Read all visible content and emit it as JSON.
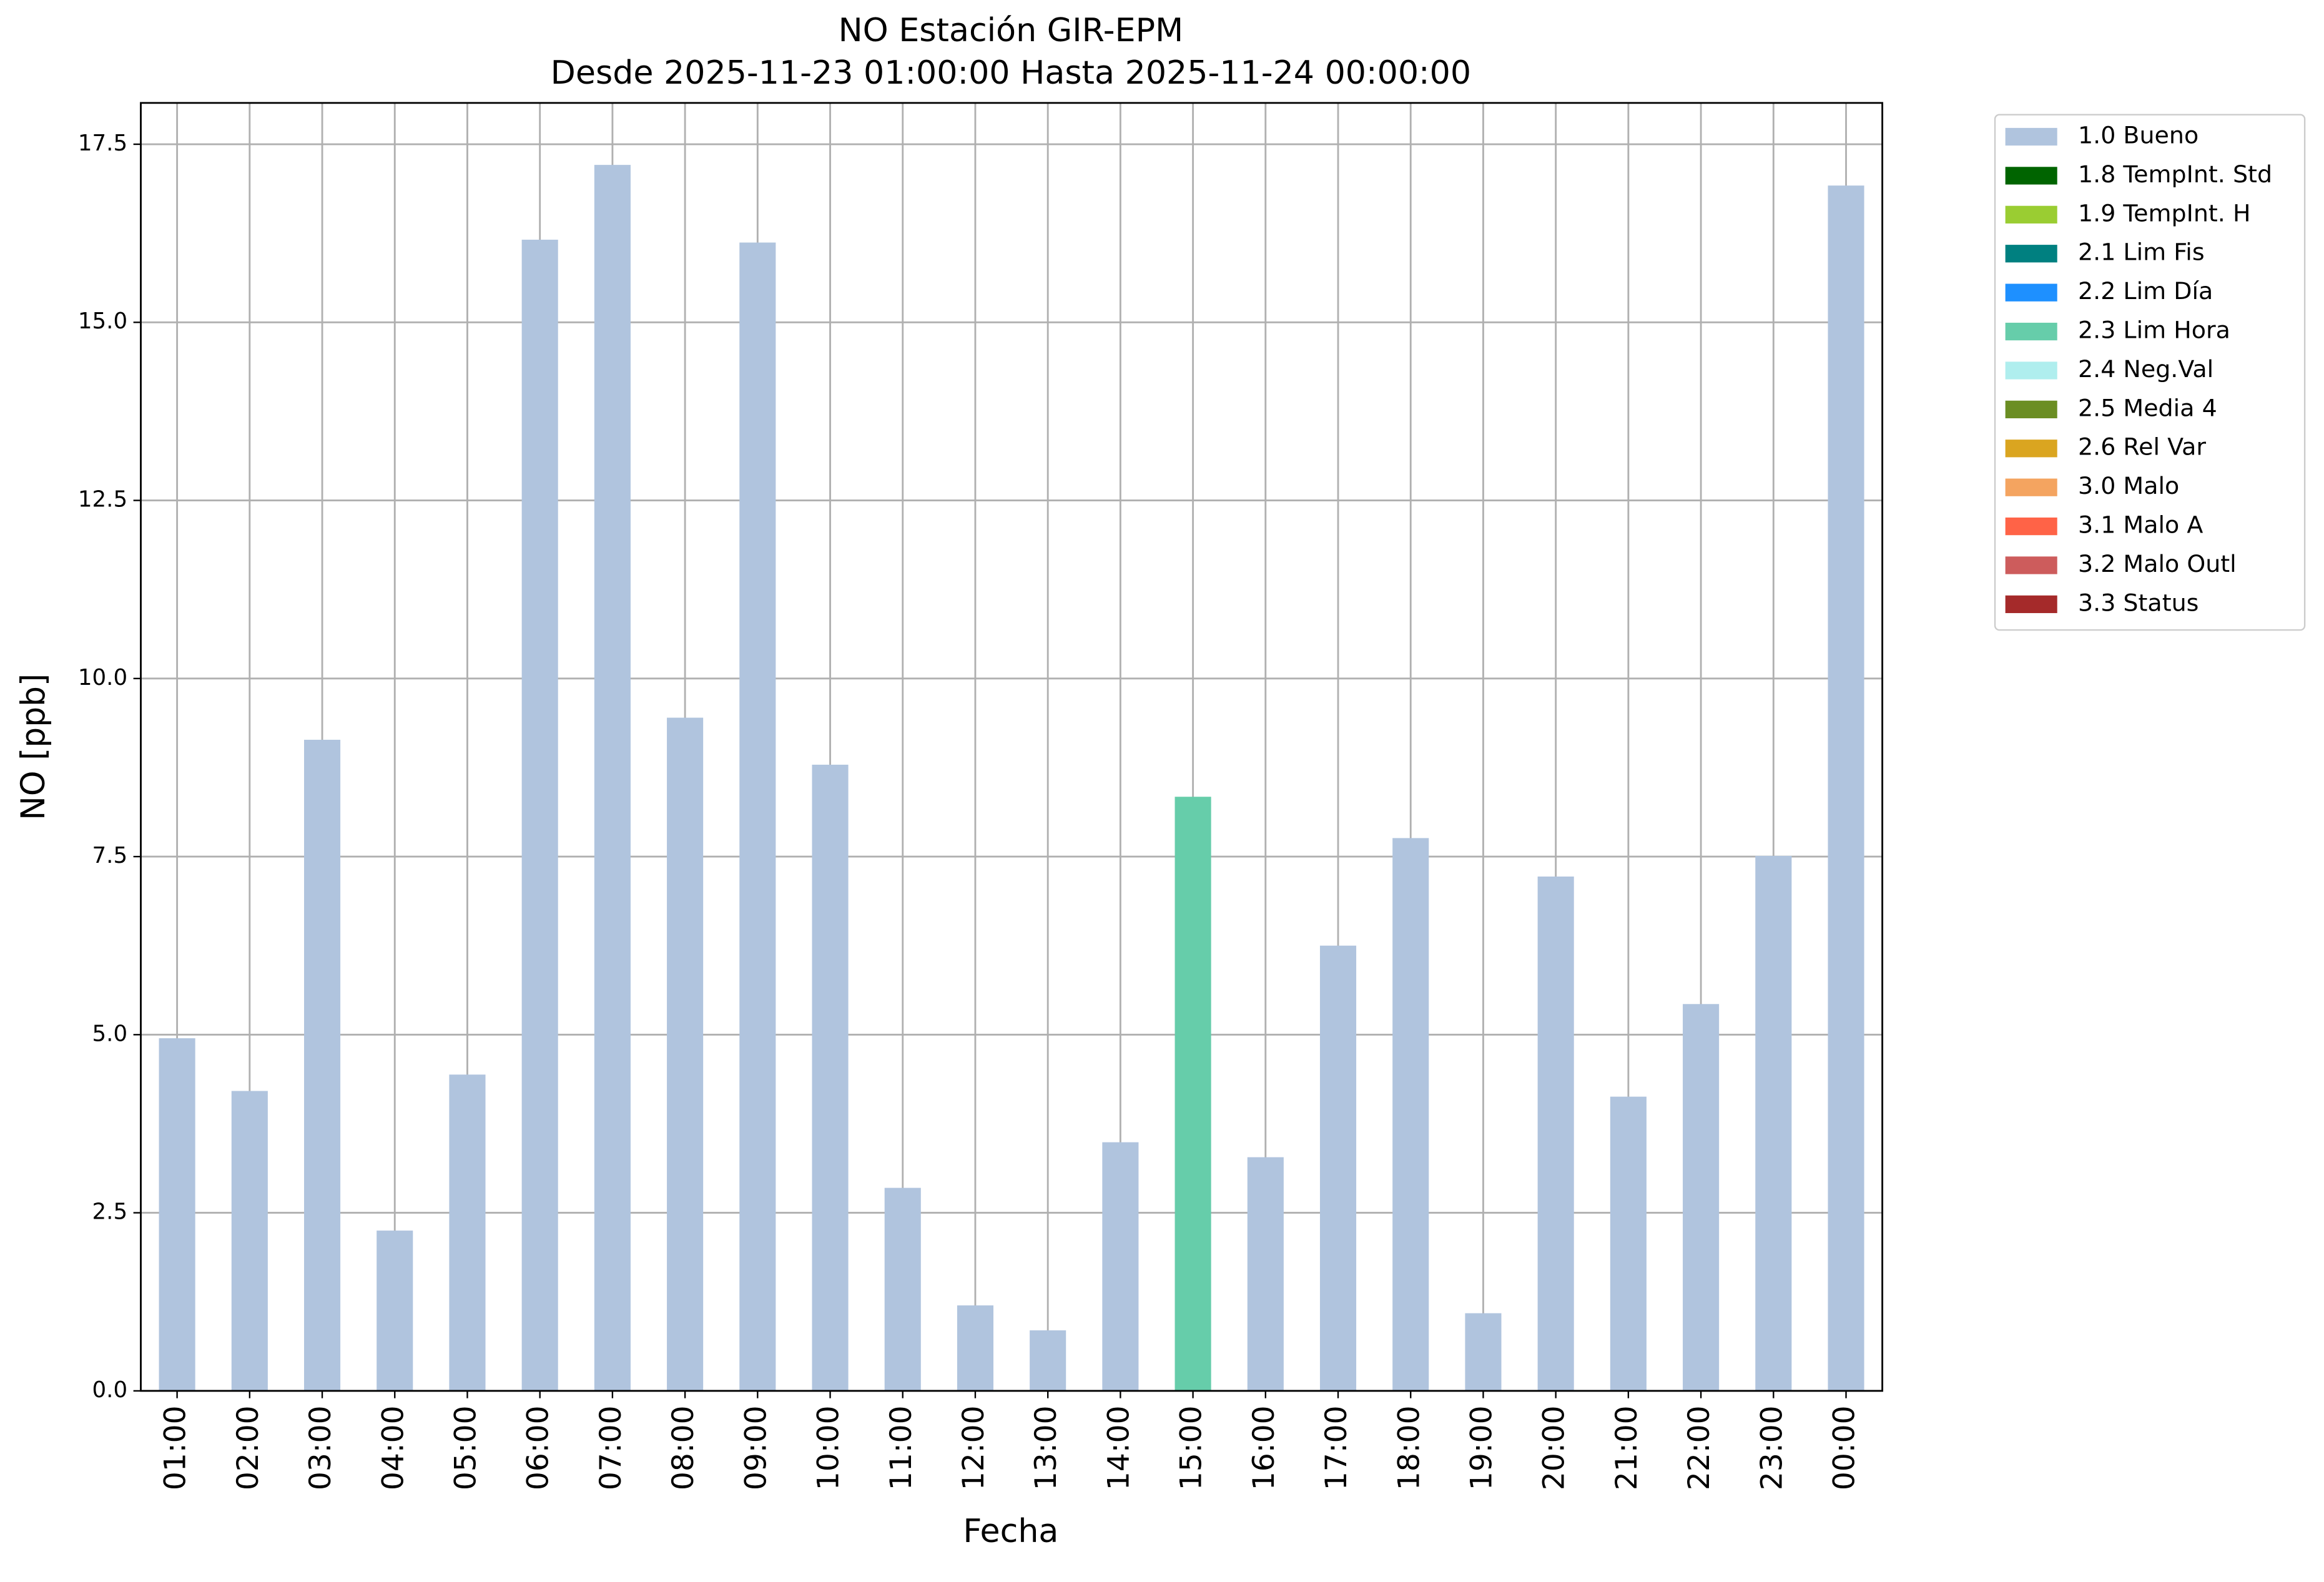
{
  "chart_data": {
    "type": "stacked_bar",
    "title": "NO Estación GIR-EPM",
    "subtitle": "Desde 2025-11-23 01:00:00 Hasta 2025-11-24 00:00:00",
    "x_label": "Fecha",
    "y_label": "NO [ppb]",
    "categories": [
      "01:00",
      "02:00",
      "03:00",
      "04:00",
      "05:00",
      "06:00",
      "07:00",
      "08:00",
      "09:00",
      "10:00",
      "11:00",
      "12:00",
      "13:00",
      "14:00",
      "15:00",
      "16:00",
      "17:00",
      "18:00",
      "19:00",
      "20:00",
      "21:00",
      "22:00",
      "23:00",
      "00:00"
    ],
    "series": [
      {
        "name": "1.0 Bueno",
        "color": "#b0c4de",
        "values": [
          4.95,
          4.21,
          9.14,
          2.25,
          4.44,
          16.16,
          17.21,
          9.45,
          16.12,
          8.79,
          2.85,
          1.2,
          0.85,
          3.49,
          null,
          3.28,
          6.25,
          7.76,
          1.09,
          7.22,
          4.13,
          5.43,
          7.51,
          16.92
        ]
      },
      {
        "name": "1.8 TempInt. Std",
        "color": "#006400",
        "values": [
          null,
          null,
          null,
          null,
          null,
          null,
          null,
          null,
          null,
          null,
          null,
          null,
          null,
          null,
          null,
          null,
          null,
          null,
          null,
          null,
          null,
          null,
          null,
          null
        ]
      },
      {
        "name": "1.9 TempInt. H",
        "color": "#9acd32",
        "values": [
          null,
          null,
          null,
          null,
          null,
          null,
          null,
          null,
          null,
          null,
          null,
          null,
          null,
          null,
          null,
          null,
          null,
          null,
          null,
          null,
          null,
          null,
          null,
          null
        ]
      },
      {
        "name": "2.1 Lim Fis",
        "color": "#008080",
        "values": [
          null,
          null,
          null,
          null,
          null,
          null,
          null,
          null,
          null,
          null,
          null,
          null,
          null,
          null,
          null,
          null,
          null,
          null,
          null,
          null,
          null,
          null,
          null,
          null
        ]
      },
      {
        "name": "2.2 Lim Día",
        "color": "#1e90ff",
        "values": [
          null,
          null,
          null,
          null,
          null,
          null,
          null,
          null,
          null,
          null,
          null,
          null,
          null,
          null,
          null,
          null,
          null,
          null,
          null,
          null,
          null,
          null,
          null,
          null
        ]
      },
      {
        "name": "2.3 Lim Hora",
        "color": "#66cdaa",
        "values": [
          null,
          null,
          null,
          null,
          null,
          null,
          null,
          null,
          null,
          null,
          null,
          null,
          null,
          null,
          8.34,
          null,
          null,
          null,
          null,
          null,
          null,
          null,
          null,
          null
        ]
      },
      {
        "name": "2.4 Neg.Val",
        "color": "#afeeee",
        "values": [
          null,
          null,
          null,
          null,
          null,
          null,
          null,
          null,
          null,
          null,
          null,
          null,
          null,
          null,
          null,
          null,
          null,
          null,
          null,
          null,
          null,
          null,
          null,
          null
        ]
      },
      {
        "name": "2.5 Media 4",
        "color": "#6b8e23",
        "values": [
          null,
          null,
          null,
          null,
          null,
          null,
          null,
          null,
          null,
          null,
          null,
          null,
          null,
          null,
          null,
          null,
          null,
          null,
          null,
          null,
          null,
          null,
          null,
          null
        ]
      },
      {
        "name": "2.6 Rel Var",
        "color": "#daa520",
        "values": [
          null,
          null,
          null,
          null,
          null,
          null,
          null,
          null,
          null,
          null,
          null,
          null,
          null,
          null,
          null,
          null,
          null,
          null,
          null,
          null,
          null,
          null,
          null,
          null
        ]
      },
      {
        "name": "3.0 Malo",
        "color": "#f4a460",
        "values": [
          null,
          null,
          null,
          null,
          null,
          null,
          null,
          null,
          null,
          null,
          null,
          null,
          null,
          null,
          null,
          null,
          null,
          null,
          null,
          null,
          null,
          null,
          null,
          null
        ]
      },
      {
        "name": "3.1 Malo A",
        "color": "#ff6347",
        "values": [
          null,
          null,
          null,
          null,
          null,
          null,
          null,
          null,
          null,
          null,
          null,
          null,
          null,
          null,
          null,
          null,
          null,
          null,
          null,
          null,
          null,
          null,
          null,
          null
        ]
      },
      {
        "name": "3.2 Malo Outl",
        "color": "#cd5c5c",
        "values": [
          null,
          null,
          null,
          null,
          null,
          null,
          null,
          null,
          null,
          null,
          null,
          null,
          null,
          null,
          null,
          null,
          null,
          null,
          null,
          null,
          null,
          null,
          null,
          null
        ]
      },
      {
        "name": "3.3 Status",
        "color": "#a52a2a",
        "values": [
          null,
          null,
          null,
          null,
          null,
          null,
          null,
          null,
          null,
          null,
          null,
          null,
          null,
          null,
          null,
          null,
          null,
          null,
          null,
          null,
          null,
          null,
          null,
          null
        ]
      }
    ],
    "ylim": [
      0,
      18.08
    ],
    "yticks": [
      {
        "value": 0,
        "label": "0.0"
      },
      2.5,
      {
        "value": 5,
        "label": "5.0"
      },
      7.5,
      {
        "value": 10,
        "label": "10.0"
      },
      12.5,
      {
        "value": 15,
        "label": "15.0"
      },
      17.5
    ],
    "grid": true,
    "legend": "outside upper right"
  }
}
